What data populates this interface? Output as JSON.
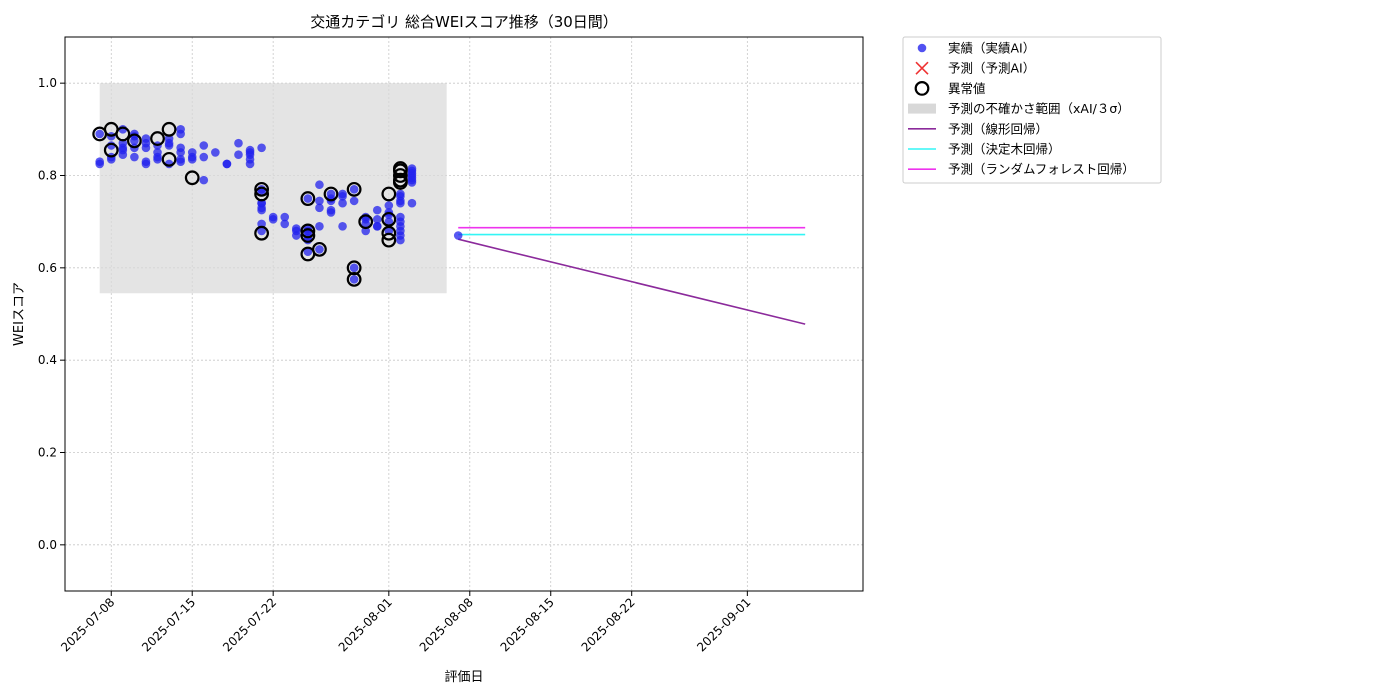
{
  "chart_data": {
    "type": "scatter",
    "title": "交通カテゴリ 総合WEIスコア推移（30日間）",
    "xlabel": "評価日",
    "ylabel": "WEIスコア",
    "xlim": [
      "2025-07-04",
      "2025-09-11"
    ],
    "ylim": [
      -0.1,
      1.1
    ],
    "x_ticks": [
      "2025-07-08",
      "2025-07-15",
      "2025-07-22",
      "2025-08-01",
      "2025-08-08",
      "2025-08-15",
      "2025-08-22",
      "2025-09-01"
    ],
    "y_ticks": [
      "0.0",
      "0.2",
      "0.4",
      "0.6",
      "0.8",
      "1.0"
    ],
    "grid": true,
    "legend_position": "outside-right-top",
    "legend": [
      {
        "label": "実績（実績AI）",
        "kind": "dot",
        "color": "#3333ee"
      },
      {
        "label": "予測（予測AI）",
        "kind": "cross",
        "color": "#ee3333"
      },
      {
        "label": "異常値",
        "kind": "ring",
        "color": "#000000"
      },
      {
        "label": "予測の不確かさ範囲（xAI/３σ）",
        "kind": "band",
        "color": "#d8d8d8"
      },
      {
        "label": "予測（線形回帰）",
        "kind": "line",
        "color": "#8b2a9b"
      },
      {
        "label": "予測（決定木回帰）",
        "kind": "line",
        "color": "#33f5f5"
      },
      {
        "label": "予測（ランダムフォレスト回帰）",
        "kind": "line",
        "color": "#ee33ee"
      }
    ],
    "uncertainty_band": {
      "x": [
        "2025-07-07",
        "2025-08-06"
      ],
      "y": [
        0.545,
        1.0
      ],
      "color": "#d8d8d8"
    },
    "series": [
      {
        "name": "実績（実績AI）",
        "color": "#2222ee",
        "points": [
          [
            "2025-07-07",
            0.83
          ],
          [
            "2025-07-07",
            0.825
          ],
          [
            "2025-07-07",
            0.89
          ],
          [
            "2025-07-08",
            0.865
          ],
          [
            "2025-07-08",
            0.84
          ],
          [
            "2025-07-08",
            0.835
          ],
          [
            "2025-07-08",
            0.885
          ],
          [
            "2025-07-09",
            0.845
          ],
          [
            "2025-07-09",
            0.87
          ],
          [
            "2025-07-09",
            0.855
          ],
          [
            "2025-07-09",
            0.9
          ],
          [
            "2025-07-09",
            0.86
          ],
          [
            "2025-07-10",
            0.84
          ],
          [
            "2025-07-10",
            0.89
          ],
          [
            "2025-07-10",
            0.885
          ],
          [
            "2025-07-10",
            0.875
          ],
          [
            "2025-07-10",
            0.86
          ],
          [
            "2025-07-11",
            0.83
          ],
          [
            "2025-07-11",
            0.825
          ],
          [
            "2025-07-11",
            0.87
          ],
          [
            "2025-07-11",
            0.88
          ],
          [
            "2025-07-11",
            0.86
          ],
          [
            "2025-07-12",
            0.85
          ],
          [
            "2025-07-12",
            0.84
          ],
          [
            "2025-07-12",
            0.865
          ],
          [
            "2025-07-12",
            0.835
          ],
          [
            "2025-07-13",
            0.825
          ],
          [
            "2025-07-13",
            0.865
          ],
          [
            "2025-07-13",
            0.88
          ],
          [
            "2025-07-13",
            0.87
          ],
          [
            "2025-07-14",
            0.89
          ],
          [
            "2025-07-14",
            0.86
          ],
          [
            "2025-07-14",
            0.85
          ],
          [
            "2025-07-14",
            0.835
          ],
          [
            "2025-07-14",
            0.83
          ],
          [
            "2025-07-14",
            0.9
          ],
          [
            "2025-07-15",
            0.85
          ],
          [
            "2025-07-15",
            0.84
          ],
          [
            "2025-07-15",
            0.835
          ],
          [
            "2025-07-16",
            0.865
          ],
          [
            "2025-07-16",
            0.84
          ],
          [
            "2025-07-16",
            0.79
          ],
          [
            "2025-07-17",
            0.85
          ],
          [
            "2025-07-18",
            0.825
          ],
          [
            "2025-07-18",
            0.825
          ],
          [
            "2025-07-19",
            0.87
          ],
          [
            "2025-07-19",
            0.845
          ],
          [
            "2025-07-20",
            0.835
          ],
          [
            "2025-07-20",
            0.825
          ],
          [
            "2025-07-20",
            0.855
          ],
          [
            "2025-07-20",
            0.85
          ],
          [
            "2025-07-20",
            0.845
          ],
          [
            "2025-07-21",
            0.86
          ],
          [
            "2025-07-21",
            0.74
          ],
          [
            "2025-07-21",
            0.77
          ],
          [
            "2025-07-21",
            0.765
          ],
          [
            "2025-07-21",
            0.74
          ],
          [
            "2025-07-21",
            0.73
          ],
          [
            "2025-07-21",
            0.725
          ],
          [
            "2025-07-21",
            0.695
          ],
          [
            "2025-07-21",
            0.68
          ],
          [
            "2025-07-22",
            0.71
          ],
          [
            "2025-07-22",
            0.705
          ],
          [
            "2025-07-23",
            0.695
          ],
          [
            "2025-07-23",
            0.71
          ],
          [
            "2025-07-24",
            0.685
          ],
          [
            "2025-07-24",
            0.68
          ],
          [
            "2025-07-24",
            0.67
          ],
          [
            "2025-07-25",
            0.685
          ],
          [
            "2025-07-25",
            0.68
          ],
          [
            "2025-07-25",
            0.675
          ],
          [
            "2025-07-25",
            0.665
          ],
          [
            "2025-07-25",
            0.635
          ],
          [
            "2025-07-25",
            0.75
          ],
          [
            "2025-07-25",
            0.66
          ],
          [
            "2025-07-26",
            0.64
          ],
          [
            "2025-07-26",
            0.69
          ],
          [
            "2025-07-26",
            0.745
          ],
          [
            "2025-07-26",
            0.73
          ],
          [
            "2025-07-26",
            0.78
          ],
          [
            "2025-07-27",
            0.75
          ],
          [
            "2025-07-27",
            0.72
          ],
          [
            "2025-07-27",
            0.745
          ],
          [
            "2025-07-27",
            0.725
          ],
          [
            "2025-07-27",
            0.76
          ],
          [
            "2025-07-28",
            0.69
          ],
          [
            "2025-07-28",
            0.74
          ],
          [
            "2025-07-28",
            0.755
          ],
          [
            "2025-07-28",
            0.76
          ],
          [
            "2025-07-29",
            0.77
          ],
          [
            "2025-07-29",
            0.745
          ],
          [
            "2025-07-29",
            0.6
          ],
          [
            "2025-07-29",
            0.575
          ],
          [
            "2025-07-30",
            0.71
          ],
          [
            "2025-07-30",
            0.695
          ],
          [
            "2025-07-30",
            0.68
          ],
          [
            "2025-07-30",
            0.705
          ],
          [
            "2025-07-31",
            0.69
          ],
          [
            "2025-07-31",
            0.705
          ],
          [
            "2025-07-31",
            0.725
          ],
          [
            "2025-07-31",
            0.69
          ],
          [
            "2025-08-01",
            0.7
          ],
          [
            "2025-08-01",
            0.68
          ],
          [
            "2025-08-01",
            0.735
          ],
          [
            "2025-08-01",
            0.715
          ],
          [
            "2025-08-01",
            0.72
          ],
          [
            "2025-08-02",
            0.71
          ],
          [
            "2025-08-02",
            0.69
          ],
          [
            "2025-08-02",
            0.68
          ],
          [
            "2025-08-02",
            0.67
          ],
          [
            "2025-08-02",
            0.66
          ],
          [
            "2025-08-02",
            0.7
          ],
          [
            "2025-08-02",
            0.74
          ],
          [
            "2025-08-02",
            0.76
          ],
          [
            "2025-08-02",
            0.755
          ],
          [
            "2025-08-02",
            0.745
          ],
          [
            "2025-08-03",
            0.8
          ],
          [
            "2025-08-03",
            0.81
          ],
          [
            "2025-08-03",
            0.815
          ],
          [
            "2025-08-03",
            0.79
          ],
          [
            "2025-08-03",
            0.785
          ],
          [
            "2025-08-03",
            0.795
          ],
          [
            "2025-08-03",
            0.805
          ],
          [
            "2025-08-03",
            0.74
          ],
          [
            "2025-08-07",
            0.67
          ]
        ]
      },
      {
        "name": "異常値",
        "color": "#000000",
        "points": [
          [
            "2025-07-07",
            0.89
          ],
          [
            "2025-07-08",
            0.9
          ],
          [
            "2025-07-08",
            0.855
          ],
          [
            "2025-07-09",
            0.89
          ],
          [
            "2025-07-10",
            0.875
          ],
          [
            "2025-07-12",
            0.88
          ],
          [
            "2025-07-13",
            0.835
          ],
          [
            "2025-07-13",
            0.9
          ],
          [
            "2025-07-15",
            0.795
          ],
          [
            "2025-07-21",
            0.77
          ],
          [
            "2025-07-21",
            0.76
          ],
          [
            "2025-07-21",
            0.675
          ],
          [
            "2025-07-25",
            0.75
          ],
          [
            "2025-07-25",
            0.68
          ],
          [
            "2025-07-25",
            0.67
          ],
          [
            "2025-07-25",
            0.63
          ],
          [
            "2025-07-26",
            0.64
          ],
          [
            "2025-07-27",
            0.76
          ],
          [
            "2025-07-29",
            0.77
          ],
          [
            "2025-07-29",
            0.6
          ],
          [
            "2025-07-29",
            0.575
          ],
          [
            "2025-07-30",
            0.7
          ],
          [
            "2025-08-01",
            0.76
          ],
          [
            "2025-08-01",
            0.705
          ],
          [
            "2025-08-01",
            0.675
          ],
          [
            "2025-08-01",
            0.66
          ],
          [
            "2025-08-02",
            0.815
          ],
          [
            "2025-08-02",
            0.81
          ],
          [
            "2025-08-02",
            0.8
          ],
          [
            "2025-08-02",
            0.79
          ],
          [
            "2025-08-02",
            0.785
          ]
        ]
      },
      {
        "name": "予測（線形回帰）",
        "color": "#8b2a9b",
        "points": [
          [
            "2025-08-07",
            0.662
          ],
          [
            "2025-09-06",
            0.478
          ]
        ]
      },
      {
        "name": "予測（決定木回帰）",
        "color": "#33f5f5",
        "points": [
          [
            "2025-08-07",
            0.672
          ],
          [
            "2025-09-06",
            0.672
          ]
        ]
      },
      {
        "name": "予測（ランダムフォレスト回帰）",
        "color": "#ee33ee",
        "points": [
          [
            "2025-08-07",
            0.687
          ],
          [
            "2025-09-06",
            0.687
          ]
        ]
      }
    ]
  }
}
